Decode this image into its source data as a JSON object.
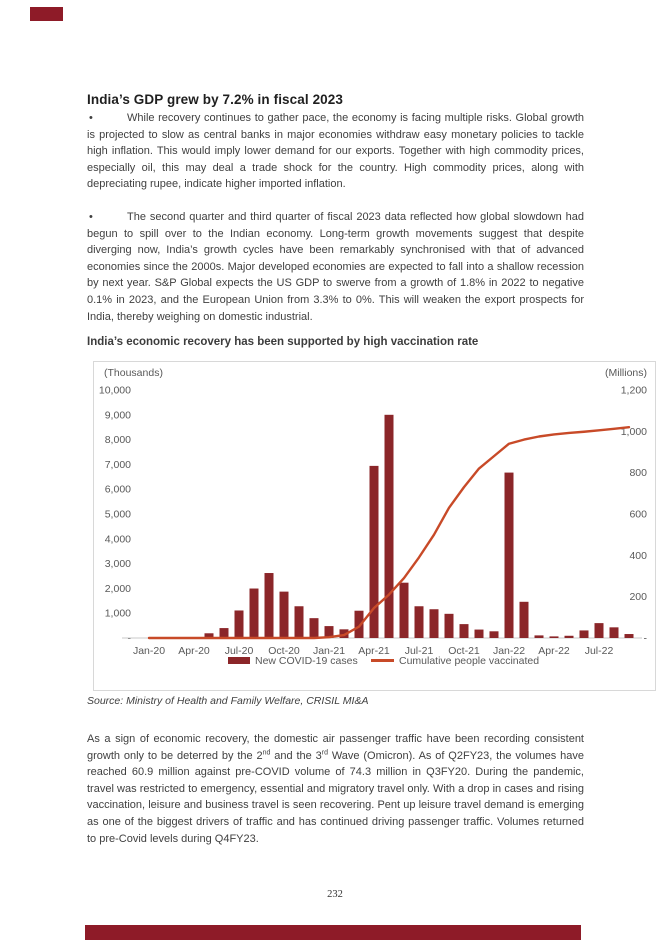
{
  "brand": {
    "logo_block_color": "#8e1b28",
    "footer_bar_color": "#8e1b28"
  },
  "title": "India’s GDP  grew by 7.2% in fiscal 2023",
  "bullets": [
    "While recovery continues to gather pace, the economy is facing multiple risks. Global growth is projected to slow as central banks in major economies withdraw easy monetary policies to tackle high inflation. This would imply lower demand for our exports. Together with high commodity prices, especially oil, this may deal a trade shock for the country. High commodity prices, along with depreciating rupee, indicate higher imported inflation.",
    "The second quarter and third quarter of fiscal 2023 data reflected how global slowdown had begun to spill over to the Indian economy. Long-term growth movements suggest that despite diverging now, India’s growth cycles have been remarkably synchronised with that of advanced economies since the 2000s. Major developed economies are expected to fall into a shallow recession by next year. S&P Global expects the US GDP to swerve from a growth of 1.8% in 2022 to negative 0.1% in 2023, and the European Union from 3.3% to 0%. This will weaken the export prospects for India, thereby weighing on domestic industrial."
  ],
  "chart_heading": "India’s economic recovery has been supported by high vaccination rate",
  "chart_data": {
    "type": "combo-bar-line",
    "title": "India’s economic recovery has been supported by high vaccination rate",
    "x": [
      "Jan-20",
      "Feb-20",
      "Mar-20",
      "Apr-20",
      "May-20",
      "Jun-20",
      "Jul-20",
      "Aug-20",
      "Sep-20",
      "Oct-20",
      "Nov-20",
      "Dec-20",
      "Jan-21",
      "Feb-21",
      "Mar-21",
      "Apr-21",
      "May-21",
      "Jun-21",
      "Jul-21",
      "Aug-21",
      "Sep-21",
      "Oct-21",
      "Nov-21",
      "Dec-21",
      "Jan-22",
      "Feb-22",
      "Mar-22",
      "Apr-22",
      "May-22",
      "Jun-22",
      "Jul-22",
      "Aug-22",
      "Sep-22"
    ],
    "x_tick_labels": [
      "Jan-20",
      "Apr-20",
      "Jul-20",
      "Oct-20",
      "Jan-21",
      "Apr-21",
      "Jul-21",
      "Oct-21",
      "Jan-22",
      "Apr-22",
      "Jul-22"
    ],
    "series": [
      {
        "name": "New COVID-19 cases",
        "type": "bar",
        "axis": "left",
        "unit": "Thousands",
        "color": "#8b2629",
        "values": [
          0,
          0,
          2,
          35,
          190,
          400,
          1110,
          1995,
          2620,
          1870,
          1280,
          800,
          480,
          350,
          1100,
          6940,
          9000,
          2230,
          1280,
          1160,
          975,
          560,
          340,
          270,
          6670,
          1460,
          105,
          65,
          90,
          305,
          600,
          430,
          160
        ]
      },
      {
        "name": "Cumulative people vaccinated",
        "type": "line",
        "axis": "right",
        "unit": "Millions",
        "color": "#c84a28",
        "values": [
          0,
          0,
          0,
          0,
          0,
          0,
          0,
          0,
          0,
          0,
          0,
          0,
          4,
          14,
          55,
          145,
          210,
          290,
          390,
          500,
          630,
          730,
          820,
          880,
          940,
          960,
          975,
          985,
          992,
          998,
          1005,
          1012,
          1020
        ]
      }
    ],
    "left_axis": {
      "label": "(Thousands)",
      "min": 0,
      "max": 10000,
      "tick_step": 1000,
      "tick_labels": [
        "-",
        "1,000",
        "2,000",
        "3,000",
        "4,000",
        "5,000",
        "6,000",
        "7,000",
        "8,000",
        "9,000",
        "10,000"
      ]
    },
    "right_axis": {
      "label": "(Millions)",
      "min": 0,
      "max": 1200,
      "tick_step": 200,
      "tick_labels": [
        "-",
        "200",
        "400",
        "600",
        "800",
        "1,000",
        "1,200"
      ]
    },
    "grid": false,
    "legend_position": "bottom"
  },
  "source_note": "Source: Ministry of Health and Family Welfare, CRISIL MI&A",
  "closing_paragraph": {
    "segments": [
      {
        "text": "As a sign of economic recovery, the domestic air passenger traffic have been recording consistent growth only to be deterred by the 2"
      },
      {
        "sup": "nd"
      },
      {
        "text": " and the 3"
      },
      {
        "sup": "rd"
      },
      {
        "text": " Wave (Omicron). As of Q2FY23, the volumes have reached 60.9 million against pre-COVID volume of 74.3 million in Q3FY20. During the pandemic, travel was restricted to emergency, essential and migratory travel only. With a drop in cases and rising vaccination, leisure and business travel is seen recovering. Pent up leisure travel demand is emerging as one of the biggest drivers of traffic and has continued driving passenger traffic. Volumes returned to pre-Covid levels during Q4FY23."
      }
    ]
  },
  "page": {
    "number": "232"
  }
}
